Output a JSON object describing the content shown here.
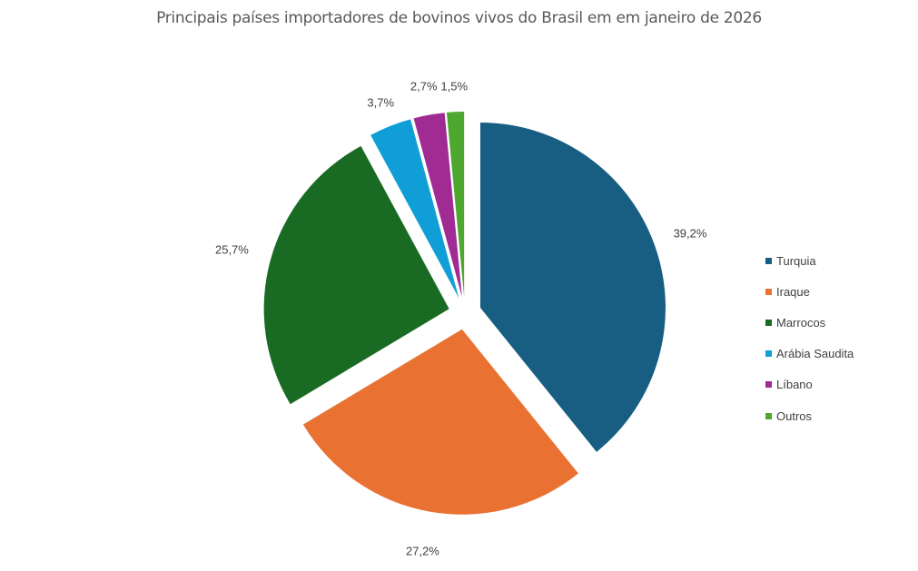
{
  "chart_data": {
    "type": "pie",
    "title": "Principais países importadores de bovinos vivos do Brasil em em janeiro de 2026",
    "categories": [
      "Turquia",
      "Iraque",
      "Marrocos",
      "Arábia Saudita",
      "Líbano",
      "Outros"
    ],
    "values": [
      39.2,
      27.2,
      25.7,
      3.7,
      2.7,
      1.5
    ],
    "labels": [
      "39,2%",
      "27,2%",
      "25,7%",
      "3,7%",
      "2,7%",
      "1,5%"
    ],
    "colors": [
      "#175E82",
      "#E97132",
      "#196B24",
      "#0F9ED5",
      "#A02B93",
      "#4EA72E"
    ],
    "legend_position": "right",
    "exploded": true
  },
  "legend": [
    {
      "label": "Turquia",
      "color": "#175E82"
    },
    {
      "label": "Iraque",
      "color": "#E97132"
    },
    {
      "label": "Marrocos",
      "color": "#196B24"
    },
    {
      "label": "Arábia Saudita",
      "color": "#0F9ED5"
    },
    {
      "label": "Líbano",
      "color": "#A02B93"
    },
    {
      "label": "Outros",
      "color": "#4EA72E"
    }
  ]
}
